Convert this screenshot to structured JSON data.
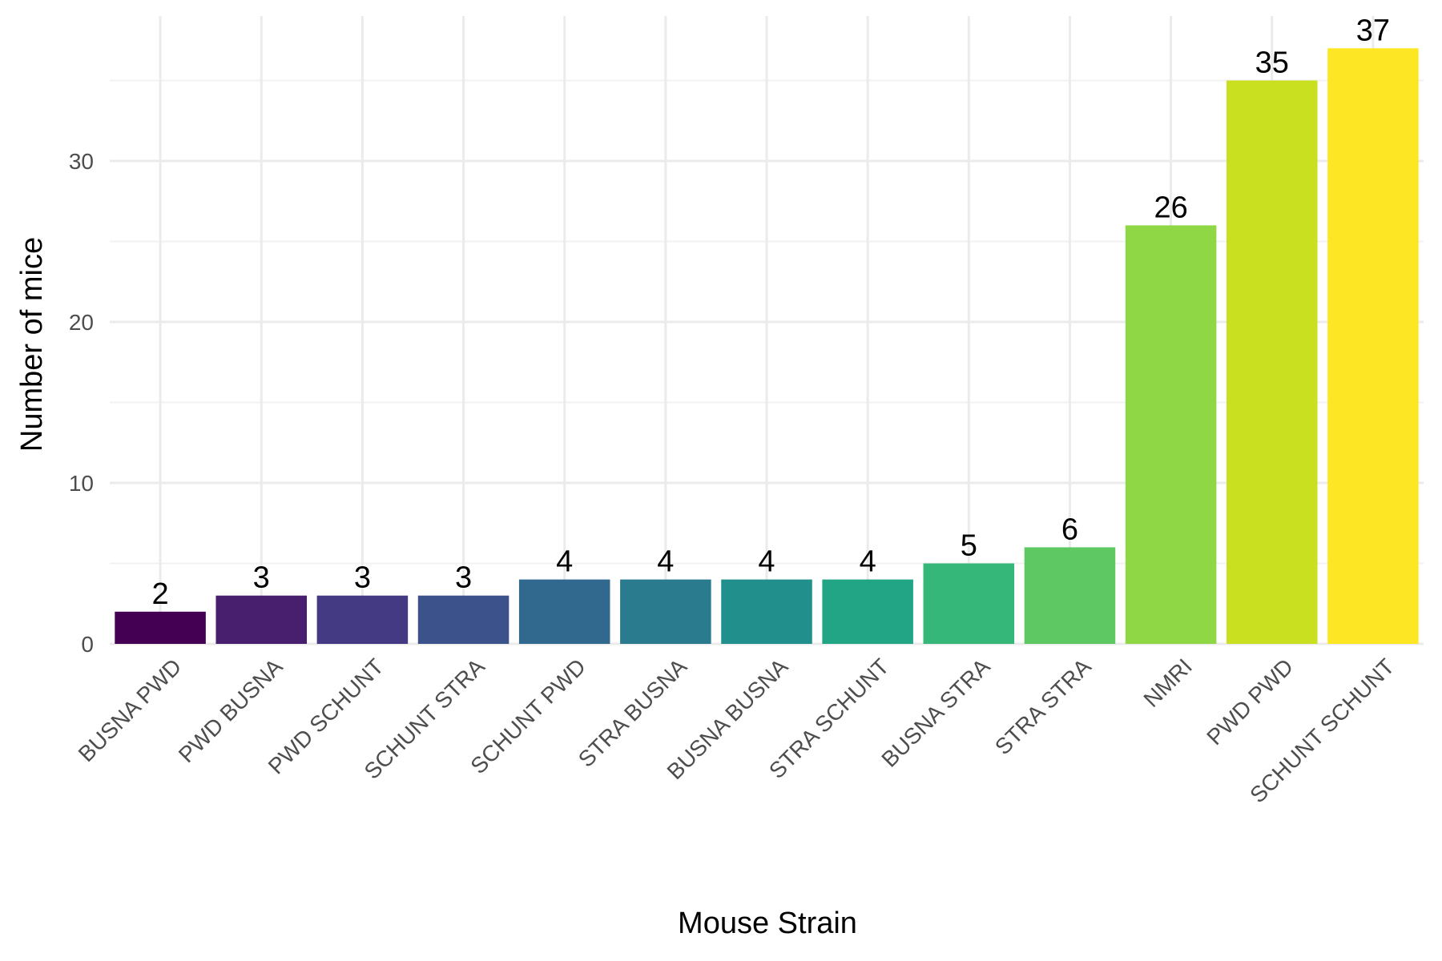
{
  "chart_data": {
    "type": "bar",
    "title": "",
    "xlabel": "Mouse Strain",
    "ylabel": "Number of mice",
    "ylim": [
      0,
      37
    ],
    "yticks": [
      0,
      10,
      20,
      30
    ],
    "grid": true,
    "legend": "none",
    "categories": [
      "BUSNA PWD",
      "PWD BUSNA",
      "PWD SCHUNT",
      "SCHUNT STRA",
      "SCHUNT PWD",
      "STRA BUSNA",
      "BUSNA BUSNA",
      "STRA SCHUNT",
      "BUSNA STRA",
      "STRA STRA",
      "NMRI",
      "PWD PWD",
      "SCHUNT SCHUNT"
    ],
    "values": [
      2,
      3,
      3,
      3,
      4,
      4,
      4,
      4,
      5,
      6,
      26,
      35,
      37
    ],
    "colors": [
      "#440154",
      "#481E6F",
      "#443A83",
      "#3B528B",
      "#31688E",
      "#2A7B8E",
      "#21908C",
      "#21A585",
      "#35B779",
      "#5EC962",
      "#8FD744",
      "#C8E020",
      "#FDE725"
    ]
  }
}
